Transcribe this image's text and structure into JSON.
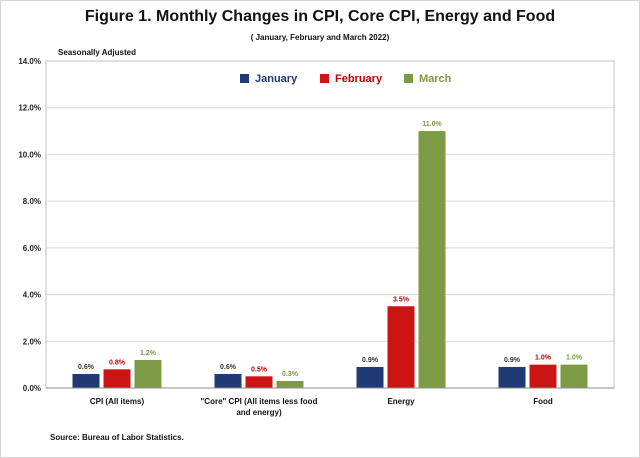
{
  "title": "Figure 1. Monthly Changes in CPI, Core CPI, Energy and Food",
  "subtitle": "( January, February and March 2022)",
  "note": "Seasonally Adjusted",
  "source": "Source: Bureau of Labor Statistics.",
  "chart_data": {
    "type": "bar",
    "categories": [
      [
        "CPI (All items)"
      ],
      [
        "\"Core\" CPI (All items less food",
        "and energy)"
      ],
      [
        "Energy"
      ],
      [
        "Food"
      ]
    ],
    "series": [
      {
        "name": "January",
        "color": "#1f3a75",
        "label_color": "#333333",
        "values": [
          0.6,
          0.6,
          0.9,
          0.9
        ],
        "labels": [
          "0.6%",
          "0.6%",
          "0.9%",
          "0.9%"
        ]
      },
      {
        "name": "February",
        "color": "#cc1414",
        "label_color": "#c00000",
        "values": [
          0.8,
          0.5,
          3.5,
          1.0
        ],
        "labels": [
          "0.8%",
          "0.5%",
          "3.5%",
          "1.0%"
        ]
      },
      {
        "name": "March",
        "color": "#7d9a45",
        "label_color": "#7d9a45",
        "values": [
          1.2,
          0.3,
          11.0,
          1.0
        ],
        "labels": [
          "1.2%",
          "0.3%",
          "11.0%",
          "1.0%"
        ]
      }
    ],
    "ylim": [
      0,
      14
    ],
    "yticks": [
      0,
      2,
      4,
      6,
      8,
      10,
      12,
      14
    ],
    "ytick_labels": [
      "0.0%",
      "2.0%",
      "4.0%",
      "6.0%",
      "8.0%",
      "10.0%",
      "12.0%",
      "14.0%"
    ],
    "grid": true,
    "legend_position": "top-right"
  }
}
